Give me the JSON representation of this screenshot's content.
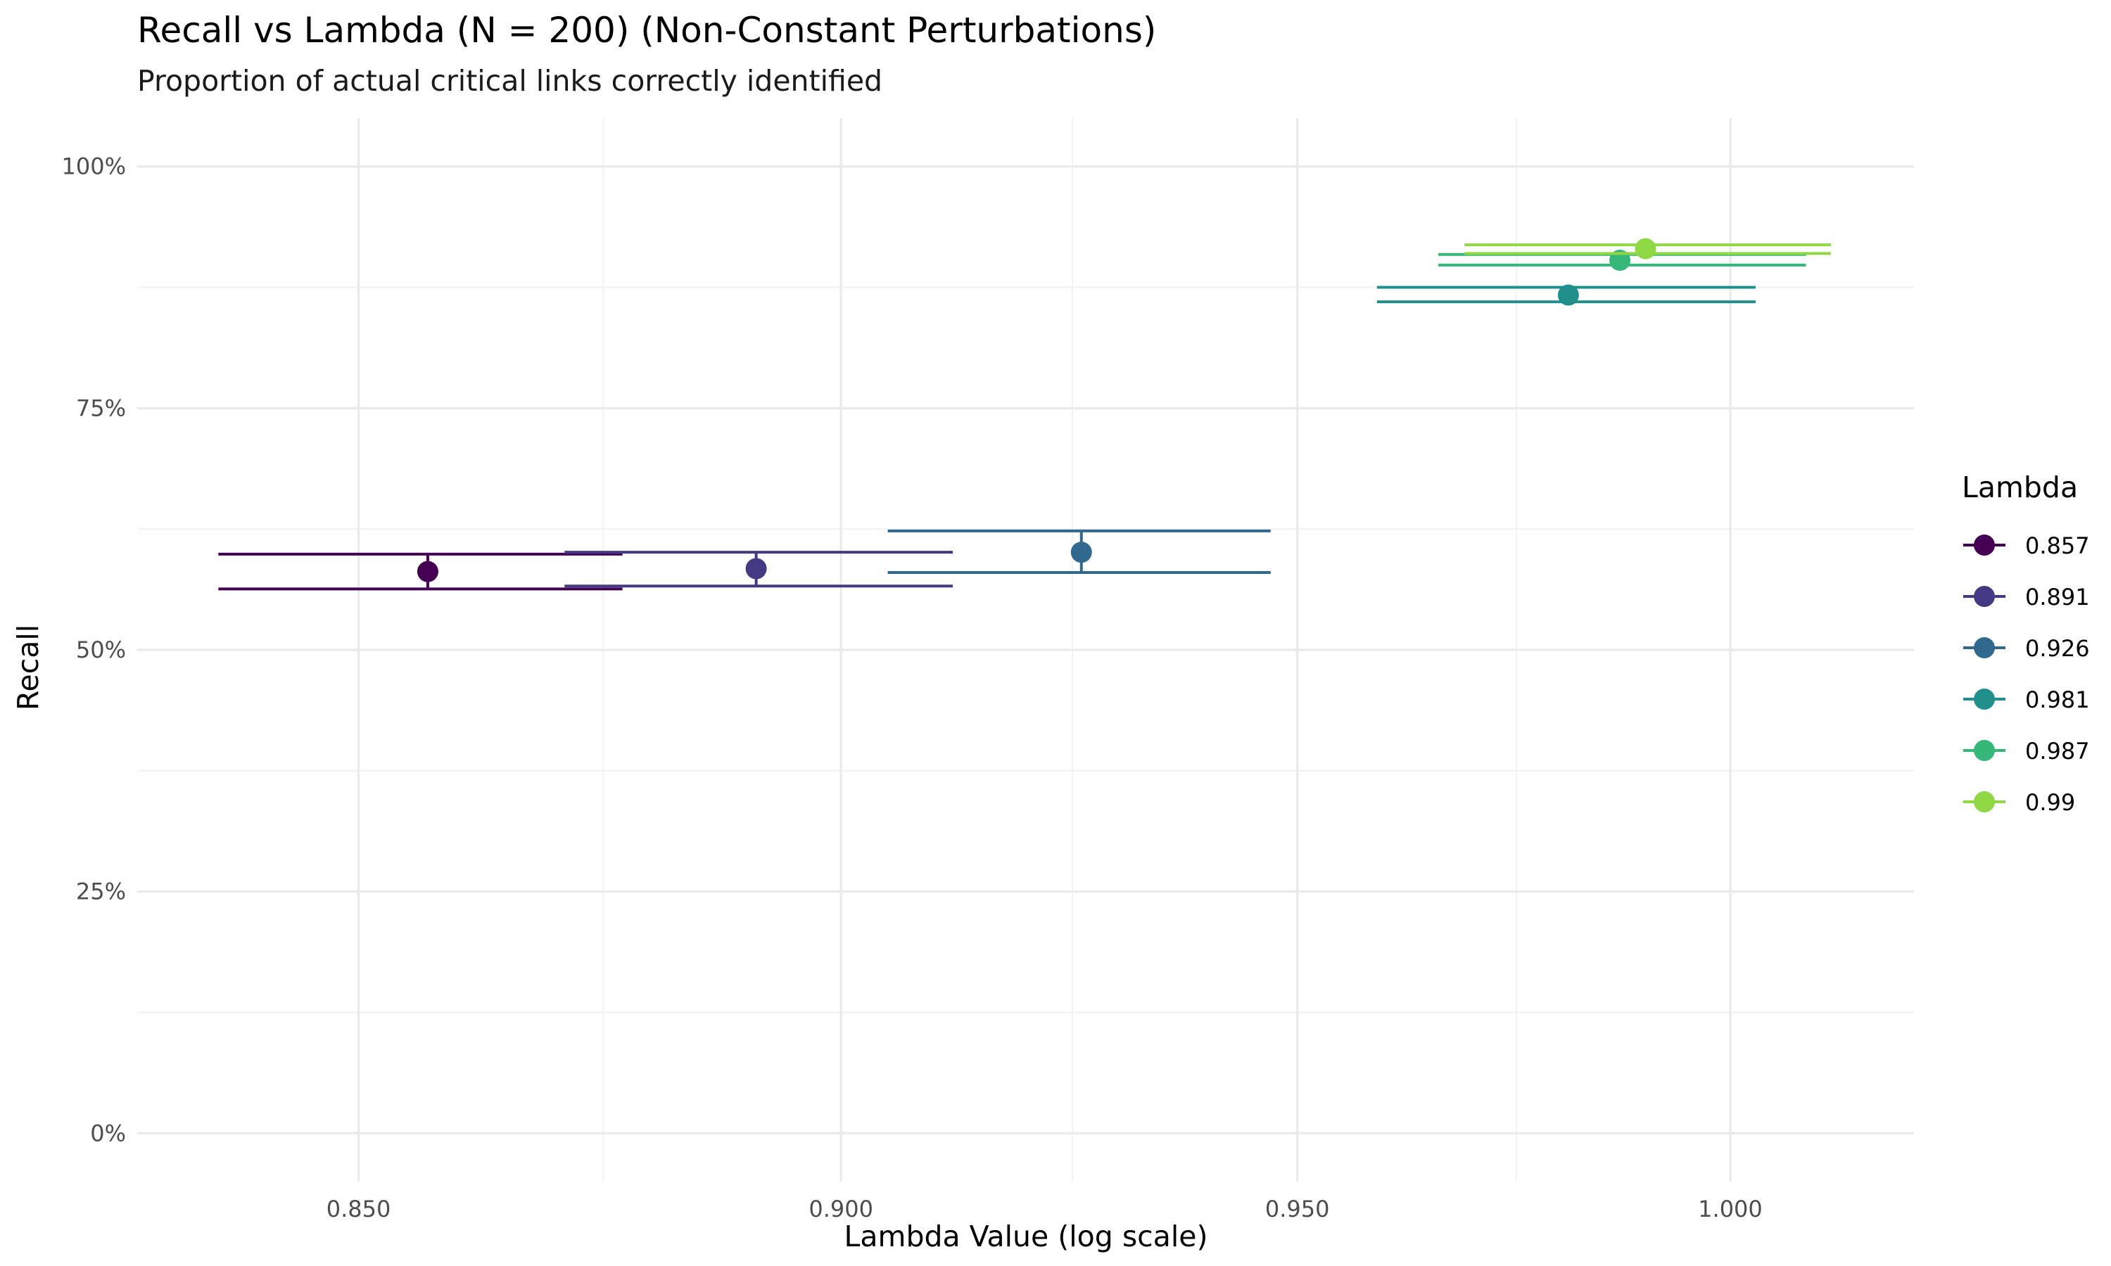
{
  "chart_data": {
    "type": "scatter",
    "title": "Recall vs Lambda (N = 200) (Non-Constant Perturbations)",
    "subtitle": "Proportion of actual critical links correctly identified",
    "xlabel": "Lambda Value (log scale)",
    "ylabel": "Recall",
    "x_scale": "log",
    "xlim": [
      0.828,
      1.022
    ],
    "ylim": [
      -0.05,
      1.05
    ],
    "x_ticks": [
      0.85,
      0.9,
      0.95,
      1.0
    ],
    "x_tick_labels": [
      "0.850",
      "0.900",
      "0.950",
      "1.000"
    ],
    "y_ticks": [
      0,
      0.25,
      0.5,
      0.75,
      1.0
    ],
    "y_tick_labels": [
      "0%",
      "25%",
      "50%",
      "75%",
      "100%"
    ],
    "grid": true,
    "legend_title": "Lambda",
    "legend_position": "right",
    "series": [
      {
        "name": "0.857",
        "color": "#440154",
        "x": 0.857,
        "y": 0.581,
        "y_err": [
          0.563,
          0.599
        ],
        "x_err": [
          0.836,
          0.877
        ]
      },
      {
        "name": "0.891",
        "color": "#443A83",
        "x": 0.891,
        "y": 0.584,
        "y_err": [
          0.566,
          0.601
        ],
        "x_err": [
          0.871,
          0.912
        ]
      },
      {
        "name": "0.926",
        "color": "#31688E",
        "x": 0.926,
        "y": 0.601,
        "y_err": [
          0.58,
          0.623
        ],
        "x_err": [
          0.905,
          0.947
        ]
      },
      {
        "name": "0.981",
        "color": "#21908D",
        "x": 0.981,
        "y": 0.867,
        "y_err": [
          0.86,
          0.875
        ],
        "x_err": [
          0.959,
          1.003
        ]
      },
      {
        "name": "0.987",
        "color": "#35B779",
        "x": 0.987,
        "y": 0.903,
        "y_err": [
          0.898,
          0.909
        ],
        "x_err": [
          0.966,
          1.009
        ]
      },
      {
        "name": "0.99",
        "color": "#8FD744",
        "x": 0.99,
        "y": 0.915,
        "y_err": [
          0.91,
          0.919
        ],
        "x_err": [
          0.969,
          1.012
        ]
      }
    ]
  }
}
